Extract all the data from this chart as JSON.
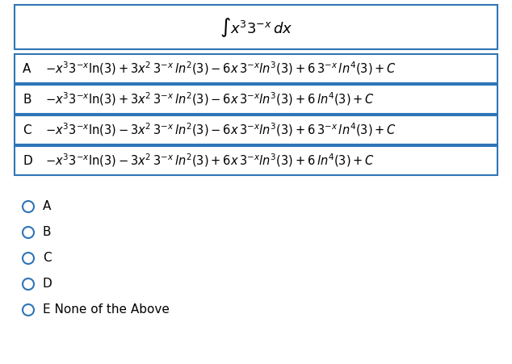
{
  "title": "$\\int x^3 3^{-x}\\, dx$",
  "options": [
    {
      "label": "A",
      "text": "$-x^3 3^{-x}\\ln(3) + 3x^2\\, 3^{-x}\\, \\mathit{ln}^2(3) - 6x\\, 3^{-x}\\mathit{ln}^3(3) + 6\\,3^{-x}\\,\\mathit{ln}^4(3) + C$"
    },
    {
      "label": "B",
      "text": "$-x^3 3^{-x}\\ln(3) + 3x^2\\, 3^{-x}\\, \\mathit{ln}^2(3) - 6x\\, 3^{-x}\\mathit{ln}^3(3) + 6\\,\\mathit{ln}^4(3) + C$"
    },
    {
      "label": "C",
      "text": "$-x^3 3^{-x}\\ln(3) - 3x^2\\, 3^{-x}\\, \\mathit{ln}^2(3) - 6x\\, 3^{-x}\\mathit{ln}^3(3) + 6\\,3^{-x}\\,\\mathit{ln}^4(3) + C$"
    },
    {
      "label": "D",
      "text": "$-x^3 3^{-x}\\ln(3) - 3x^2\\, 3^{-x}\\, \\mathit{ln}^2(3) + 6x\\, 3^{-x}\\mathit{ln}^3(3) + 6\\,\\mathit{ln}^4(3) + C$"
    }
  ],
  "radio_options": [
    "A",
    "B",
    "C",
    "D",
    "E None of the Above"
  ],
  "border_color": "#2E75B6",
  "bg_color": "#FFFFFF",
  "text_color": "#000000",
  "font_size": 11,
  "title_font_size": 13
}
